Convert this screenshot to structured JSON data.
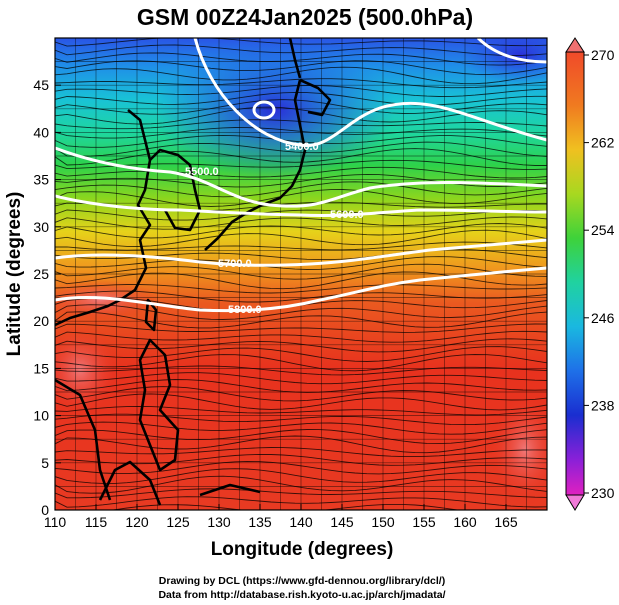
{
  "title": "GSM 00Z24Jan2025 (500.0hPa)",
  "x_axis": {
    "label": "Longitude (degrees)",
    "range": [
      110,
      170
    ],
    "ticks": [
      "110",
      "115",
      "120",
      "125",
      "130",
      "135",
      "140",
      "145",
      "150",
      "155",
      "160",
      "165"
    ]
  },
  "y_axis": {
    "label": "Latitude  (degrees)",
    "range": [
      0,
      50
    ],
    "ticks": [
      "0",
      "5",
      "10",
      "15",
      "20",
      "25",
      "30",
      "35",
      "40",
      "45"
    ]
  },
  "colorbar": {
    "range": [
      230,
      270
    ],
    "labels": [
      "270",
      "262",
      "254",
      "246",
      "238",
      "230"
    ]
  },
  "contours": [
    {
      "label": "5400.0"
    },
    {
      "label": "5500.0"
    },
    {
      "label": "5600.0"
    },
    {
      "label": "5700.0"
    },
    {
      "label": "5800.0"
    }
  ],
  "credits": {
    "line1": "Drawing by DCL (https://www.gfd-dennou.org/library/dcl/)",
    "line2": "Data from http://database.rish.kyoto-u.ac.jp/arch/jmadata/"
  },
  "colors": {
    "warm": "#e8321e",
    "cold": "#1a2fd6",
    "contour": "#ffffff"
  }
}
